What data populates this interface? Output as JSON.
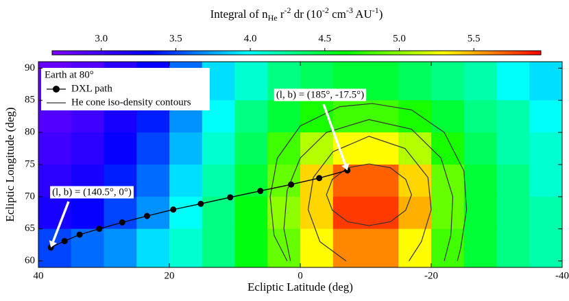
{
  "chart_data": {
    "type": "heatmap",
    "colorbar": {
      "label": [
        {
          "text": "Integral of n"
        },
        {
          "text": "He",
          "shift": "sub"
        },
        {
          "text": " r"
        },
        {
          "text": "-2",
          "shift": "sup"
        },
        {
          "text": " dr (10"
        },
        {
          "text": "-2",
          "shift": "sup"
        },
        {
          "text": " cm"
        },
        {
          "text": "-3",
          "shift": "sup"
        },
        {
          "text": " AU"
        },
        {
          "text": "-1",
          "shift": "sup"
        },
        {
          "text": ")"
        }
      ],
      "zlim": [
        2.67,
        5.95
      ],
      "ticks": [
        {
          "value": 3,
          "label": "3.0"
        },
        {
          "value": 3.5,
          "label": "3.5"
        },
        {
          "value": 4,
          "label": "4.0"
        },
        {
          "value": 4.5,
          "label": "4.5"
        },
        {
          "value": 5,
          "label": "5.0"
        },
        {
          "value": 5.5,
          "label": "5.5"
        }
      ],
      "colormap": [
        "#7f00ff",
        "#0000ff",
        "#00ffff",
        "#00ff00",
        "#ffff00",
        "#ff0000"
      ]
    },
    "x_label": "Ecliptic Latitude (deg)",
    "y_label": "Ecliptic Longitude (deg)",
    "xlim": [
      40,
      -40
    ],
    "ylim": [
      59,
      91
    ],
    "xticks": [
      40,
      20,
      0,
      -20,
      -40
    ],
    "yticks": [
      60,
      65,
      70,
      75,
      80,
      85,
      90
    ],
    "x_edges": [
      40,
      35,
      30,
      25,
      20,
      15,
      10,
      5,
      0,
      -5,
      -10,
      -15,
      -20,
      -25,
      -30,
      -35,
      -40
    ],
    "y_edges": [
      91,
      85,
      80,
      75,
      70,
      65,
      59
    ],
    "z": [
      [
        2.8,
        2.9,
        3.1,
        3.3,
        3.6,
        3.9,
        4.1,
        4.3,
        4.4,
        4.5,
        4.5,
        4.4,
        4.3,
        4.2,
        4.0,
        3.9
      ],
      [
        2.9,
        3.0,
        3.2,
        3.4,
        3.7,
        4.0,
        4.3,
        4.5,
        4.7,
        4.8,
        4.8,
        4.7,
        4.5,
        4.3,
        4.2,
        4.0
      ],
      [
        3.0,
        3.1,
        3.3,
        3.5,
        3.8,
        4.1,
        4.4,
        4.8,
        5.1,
        5.3,
        5.3,
        5.1,
        4.7,
        4.4,
        4.2,
        4.1
      ],
      [
        3.1,
        3.2,
        3.4,
        3.6,
        3.9,
        4.2,
        4.5,
        4.9,
        5.4,
        5.7,
        5.7,
        5.4,
        4.9,
        4.5,
        4.3,
        4.1
      ],
      [
        3.2,
        3.3,
        3.5,
        3.7,
        4.0,
        4.3,
        4.6,
        5.0,
        5.4,
        5.8,
        5.8,
        5.5,
        4.9,
        4.5,
        4.3,
        4.2
      ],
      [
        3.5,
        3.6,
        3.7,
        3.9,
        4.1,
        4.3,
        4.6,
        4.9,
        5.3,
        5.6,
        5.6,
        5.3,
        4.8,
        4.5,
        4.3,
        4.2
      ]
    ],
    "contours": {
      "name": "He cone iso-density contours",
      "color": "#333333",
      "lines": [
        {
          "x": [
            -4,
            -4.9,
            -7.25,
            -10.5,
            -13.75,
            -16.1,
            -17,
            -16.1,
            -13.75,
            -10.5,
            -7.25,
            -4.9,
            -4
          ],
          "y": [
            70.3,
            72.7,
            74.5,
            75.1,
            74.5,
            72.7,
            70.3,
            67.9,
            66.1,
            65.5,
            66.1,
            67.9,
            70.3
          ]
        },
        {
          "x": [
            -7,
            -3,
            -1.2,
            -2,
            -5,
            -10.5,
            -16,
            -19.5,
            -20,
            -18.5,
            -16.6
          ],
          "y": [
            60,
            63,
            68,
            73,
            77,
            79.4,
            77.5,
            73,
            68,
            63,
            60
          ]
        },
        {
          "x": [
            1.5,
            2.5,
            2,
            0,
            -4,
            -10.5,
            -17,
            -21.5,
            -23.3,
            -23,
            -22
          ],
          "y": [
            60,
            65,
            71,
            76,
            80,
            82,
            80.5,
            76,
            70,
            64,
            60
          ]
        },
        {
          "x": [
            2,
            4,
            4.6,
            3.5,
            0,
            -6,
            -11,
            -17,
            -22,
            -25,
            -25.4,
            -24.5,
            -24
          ],
          "y": [
            60,
            64,
            70,
            76,
            81,
            84,
            84.5,
            83.5,
            80,
            74,
            68,
            62,
            60
          ]
        }
      ]
    },
    "series": [
      {
        "name": "DXL path",
        "color": "#000000",
        "x": [
          38.1,
          36.0,
          33.7,
          30.7,
          27.2,
          23.4,
          19.4,
          15.2,
          10.7,
          6.1,
          1.4,
          -2.9,
          -7.2
        ],
        "y": [
          62.1,
          63.1,
          64.1,
          65.0,
          66.0,
          67.0,
          68.0,
          68.9,
          69.9,
          70.9,
          71.9,
          72.9,
          74.1
        ]
      }
    ],
    "legend": {
      "title": "Earth at 80°",
      "position": "upper left"
    },
    "annotations": [
      "(l, b) = (185°, -17.5°)",
      "(l, b) = (140.5°, 0°)"
    ]
  }
}
